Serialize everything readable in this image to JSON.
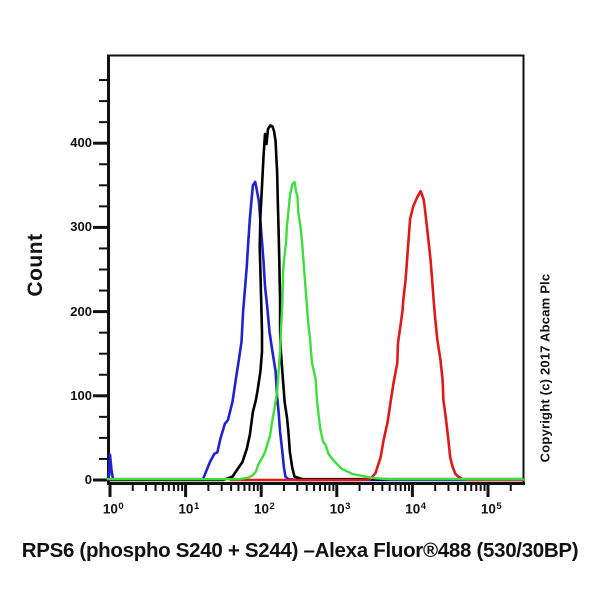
{
  "copyright": "Copyright (c) 2017 Abcam Plc",
  "chart_data": {
    "type": "line",
    "subtype": "flow-cytometry-histogram-overlay",
    "title": "",
    "xlabel": "RPS6 (phospho S240 + S244) –Alexa Fluor®488 (530/30BP)",
    "ylabel": "Count",
    "x_scale": "log10",
    "x_tick_base": "10",
    "x_tick_exponents": [
      0,
      1,
      2,
      3,
      4,
      5
    ],
    "x_range_log": [
      -0.03,
      5.46
    ],
    "ylim": [
      0,
      504
    ],
    "y_ticks": [
      0,
      100,
      200,
      300,
      400
    ],
    "y_minor_step": 25,
    "grid": "off",
    "legend": "none",
    "axis_color": "#111111",
    "series": [
      {
        "name": "blue-curve",
        "color": "#2222cc",
        "width": 2.6,
        "points": [
          [
            -0.03,
            1
          ],
          [
            -0.01,
            6
          ],
          [
            0.0,
            30
          ],
          [
            0.02,
            12
          ],
          [
            0.04,
            1
          ],
          [
            0.6,
            1
          ],
          [
            1.1,
            1
          ],
          [
            1.23,
            1
          ],
          [
            1.32,
            21
          ],
          [
            1.38,
            31
          ],
          [
            1.42,
            33
          ],
          [
            1.46,
            49
          ],
          [
            1.52,
            67
          ],
          [
            1.56,
            71
          ],
          [
            1.62,
            93
          ],
          [
            1.66,
            117
          ],
          [
            1.7,
            140
          ],
          [
            1.74,
            164
          ],
          [
            1.76,
            200
          ],
          [
            1.79,
            232
          ],
          [
            1.81,
            254
          ],
          [
            1.83,
            283
          ],
          [
            1.85,
            311
          ],
          [
            1.87,
            331
          ],
          [
            1.89,
            350
          ],
          [
            1.92,
            354
          ],
          [
            1.94,
            345
          ],
          [
            1.97,
            331
          ],
          [
            1.99,
            307
          ],
          [
            2.01,
            283
          ],
          [
            2.03,
            260
          ],
          [
            2.05,
            230
          ],
          [
            2.08,
            206
          ],
          [
            2.11,
            176
          ],
          [
            2.15,
            152
          ],
          [
            2.19,
            129
          ],
          [
            2.21,
            99
          ],
          [
            2.23,
            81
          ],
          [
            2.25,
            57
          ],
          [
            2.28,
            33
          ],
          [
            2.3,
            15
          ],
          [
            2.32,
            4
          ],
          [
            2.36,
            1
          ],
          [
            2.5,
            0
          ],
          [
            5.46,
            0
          ]
        ]
      },
      {
        "name": "black-curve",
        "color": "#000000",
        "width": 2.6,
        "points": [
          [
            -0.03,
            0
          ],
          [
            1.0,
            0
          ],
          [
            1.5,
            0
          ],
          [
            1.62,
            4
          ],
          [
            1.68,
            12
          ],
          [
            1.75,
            21
          ],
          [
            1.81,
            37
          ],
          [
            1.85,
            54
          ],
          [
            1.89,
            81
          ],
          [
            1.93,
            95
          ],
          [
            1.95,
            105
          ],
          [
            1.99,
            129
          ],
          [
            2.01,
            152
          ],
          [
            2.01,
            176
          ],
          [
            2.0,
            212
          ],
          [
            1.99,
            248
          ],
          [
            1.98,
            277
          ],
          [
            1.99,
            313
          ],
          [
            2.01,
            349
          ],
          [
            2.03,
            384
          ],
          [
            2.05,
            411
          ],
          [
            2.07,
            399
          ],
          [
            2.09,
            417
          ],
          [
            2.12,
            421
          ],
          [
            2.15,
            420
          ],
          [
            2.17,
            414
          ],
          [
            2.19,
            402
          ],
          [
            2.2,
            384
          ],
          [
            2.21,
            367
          ],
          [
            2.22,
            331
          ],
          [
            2.23,
            295
          ],
          [
            2.24,
            260
          ],
          [
            2.25,
            212
          ],
          [
            2.25,
            176
          ],
          [
            2.26,
            152
          ],
          [
            2.29,
            117
          ],
          [
            2.31,
            93
          ],
          [
            2.34,
            75
          ],
          [
            2.36,
            57
          ],
          [
            2.38,
            33
          ],
          [
            2.41,
            15
          ],
          [
            2.44,
            4
          ],
          [
            2.55,
            1
          ],
          [
            5.46,
            1
          ]
        ]
      },
      {
        "name": "red-curve",
        "color": "#dd1a1a",
        "width": 2.6,
        "points": [
          [
            1.6,
            0
          ],
          [
            2.6,
            0
          ],
          [
            3.3,
            0
          ],
          [
            3.44,
            1
          ],
          [
            3.51,
            8
          ],
          [
            3.58,
            27
          ],
          [
            3.62,
            48
          ],
          [
            3.67,
            68
          ],
          [
            3.71,
            92
          ],
          [
            3.75,
            115
          ],
          [
            3.8,
            139
          ],
          [
            3.81,
            163
          ],
          [
            3.84,
            182
          ],
          [
            3.87,
            202
          ],
          [
            3.88,
            214
          ],
          [
            3.91,
            238
          ],
          [
            3.93,
            262
          ],
          [
            3.95,
            286
          ],
          [
            3.97,
            310
          ],
          [
            4.01,
            325
          ],
          [
            4.07,
            337
          ],
          [
            4.11,
            343
          ],
          [
            4.15,
            333
          ],
          [
            4.17,
            318
          ],
          [
            4.21,
            286
          ],
          [
            4.24,
            262
          ],
          [
            4.26,
            238
          ],
          [
            4.28,
            214
          ],
          [
            4.3,
            193
          ],
          [
            4.33,
            167
          ],
          [
            4.37,
            143
          ],
          [
            4.4,
            119
          ],
          [
            4.41,
            95
          ],
          [
            4.44,
            75
          ],
          [
            4.46,
            60
          ],
          [
            4.48,
            44
          ],
          [
            4.5,
            27
          ],
          [
            4.53,
            16
          ],
          [
            4.57,
            7
          ],
          [
            4.61,
            4
          ],
          [
            4.66,
            1
          ],
          [
            4.77,
            0
          ],
          [
            5.46,
            0
          ]
        ]
      },
      {
        "name": "green-curve",
        "color": "#3dde3d",
        "width": 2.4,
        "points": [
          [
            -0.03,
            1
          ],
          [
            1.0,
            1
          ],
          [
            1.6,
            1
          ],
          [
            1.72,
            1
          ],
          [
            1.83,
            3
          ],
          [
            1.88,
            5
          ],
          [
            1.93,
            10
          ],
          [
            1.96,
            18
          ],
          [
            2.01,
            26
          ],
          [
            2.05,
            33
          ],
          [
            2.09,
            45
          ],
          [
            2.12,
            54
          ],
          [
            2.14,
            67
          ],
          [
            2.16,
            77
          ],
          [
            2.19,
            93
          ],
          [
            2.21,
            105
          ],
          [
            2.23,
            129
          ],
          [
            2.25,
            152
          ],
          [
            2.26,
            176
          ],
          [
            2.28,
            212
          ],
          [
            2.29,
            248
          ],
          [
            2.3,
            260
          ],
          [
            2.33,
            283
          ],
          [
            2.34,
            301
          ],
          [
            2.36,
            319
          ],
          [
            2.38,
            337
          ],
          [
            2.41,
            351
          ],
          [
            2.44,
            354
          ],
          [
            2.46,
            343
          ],
          [
            2.48,
            337
          ],
          [
            2.49,
            319
          ],
          [
            2.52,
            301
          ],
          [
            2.54,
            283
          ],
          [
            2.56,
            260
          ],
          [
            2.58,
            236
          ],
          [
            2.6,
            212
          ],
          [
            2.62,
            188
          ],
          [
            2.65,
            164
          ],
          [
            2.67,
            140
          ],
          [
            2.72,
            120
          ],
          [
            2.74,
            93
          ],
          [
            2.78,
            61
          ],
          [
            2.82,
            45
          ],
          [
            2.85,
            42
          ],
          [
            2.89,
            31
          ],
          [
            2.94,
            25
          ],
          [
            3.01,
            18
          ],
          [
            3.07,
            13
          ],
          [
            3.14,
            10
          ],
          [
            3.21,
            7
          ],
          [
            3.27,
            6
          ],
          [
            3.38,
            4
          ],
          [
            3.51,
            2
          ],
          [
            3.71,
            1
          ],
          [
            5.46,
            1
          ]
        ]
      }
    ]
  }
}
